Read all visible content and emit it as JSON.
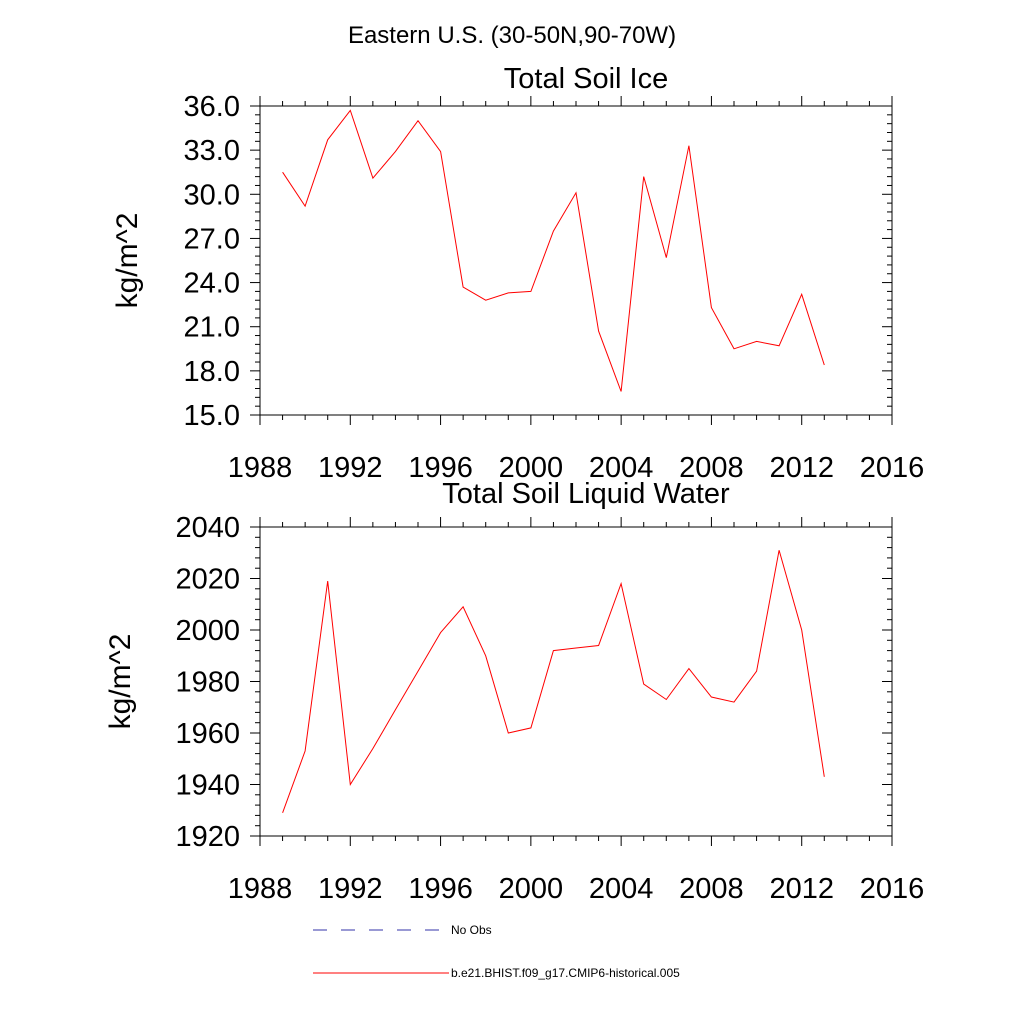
{
  "figure_title": "Eastern U.S. (30-50N,90-70W)",
  "colors": {
    "model": "#ff0000",
    "obs": "#3333aa",
    "axis": "#000000"
  },
  "legend": {
    "obs_label": "No Obs",
    "model_label": "b.e21.BHIST.f09_g17.CMIP6-historical.005"
  },
  "chart_data": [
    {
      "type": "line",
      "title": "Total Soil Ice",
      "xlabel": "",
      "ylabel": "kg/m^2",
      "xlim": [
        1988,
        2016
      ],
      "ylim": [
        15,
        36
      ],
      "xticks": [
        1988,
        1992,
        1996,
        2000,
        2004,
        2008,
        2012,
        2016
      ],
      "xtick_labels": [
        "1988",
        "1992",
        "1996",
        "2000",
        "2004",
        "2008",
        "2012",
        "2016"
      ],
      "yticks": [
        15,
        18,
        21,
        24,
        27,
        30,
        33,
        36
      ],
      "ytick_labels": [
        "15.0",
        "18.0",
        "21.0",
        "24.0",
        "27.0",
        "30.0",
        "33.0",
        "36.0"
      ],
      "series": [
        {
          "name": "b.e21.BHIST.f09_g17.CMIP6-historical.005",
          "x": [
            1989,
            1990,
            1991,
            1992,
            1993,
            1994,
            1995,
            1996,
            1997,
            1998,
            1999,
            2000,
            2001,
            2002,
            2003,
            2004,
            2005,
            2006,
            2007,
            2008,
            2009,
            2010,
            2011,
            2012,
            2013
          ],
          "y": [
            31.5,
            29.2,
            33.7,
            35.7,
            31.1,
            32.9,
            35.0,
            32.9,
            23.7,
            22.8,
            23.3,
            23.4,
            27.5,
            30.1,
            20.7,
            16.6,
            31.2,
            25.7,
            33.3,
            22.3,
            19.5,
            20.0,
            19.7,
            23.2,
            18.4
          ]
        }
      ]
    },
    {
      "type": "line",
      "title": "Total Soil Liquid Water",
      "xlabel": "",
      "ylabel": "kg/m^2",
      "xlim": [
        1988,
        2016
      ],
      "ylim": [
        1920,
        2040
      ],
      "xticks": [
        1988,
        1992,
        1996,
        2000,
        2004,
        2008,
        2012,
        2016
      ],
      "xtick_labels": [
        "1988",
        "1992",
        "1996",
        "2000",
        "2004",
        "2008",
        "2012",
        "2016"
      ],
      "yticks": [
        1920,
        1940,
        1960,
        1980,
        2000,
        2020,
        2040
      ],
      "ytick_labels": [
        "1920",
        "1940",
        "1960",
        "1980",
        "2000",
        "2020",
        "2040"
      ],
      "series": [
        {
          "name": "b.e21.BHIST.f09_g17.CMIP6-historical.005",
          "x": [
            1989,
            1990,
            1991,
            1992,
            1993,
            1994,
            1995,
            1996,
            1997,
            1998,
            1999,
            2000,
            2001,
            2002,
            2003,
            2004,
            2005,
            2006,
            2007,
            2008,
            2009,
            2010,
            2011,
            2012,
            2013
          ],
          "y": [
            1929,
            1953,
            2019,
            1940,
            1954,
            1969,
            1984,
            1999,
            2009,
            1990,
            1960,
            1962,
            1992,
            1993,
            1994,
            2018,
            1979,
            1973,
            1985,
            1974,
            1972,
            1984,
            2031,
            2000,
            1943
          ]
        }
      ]
    }
  ]
}
